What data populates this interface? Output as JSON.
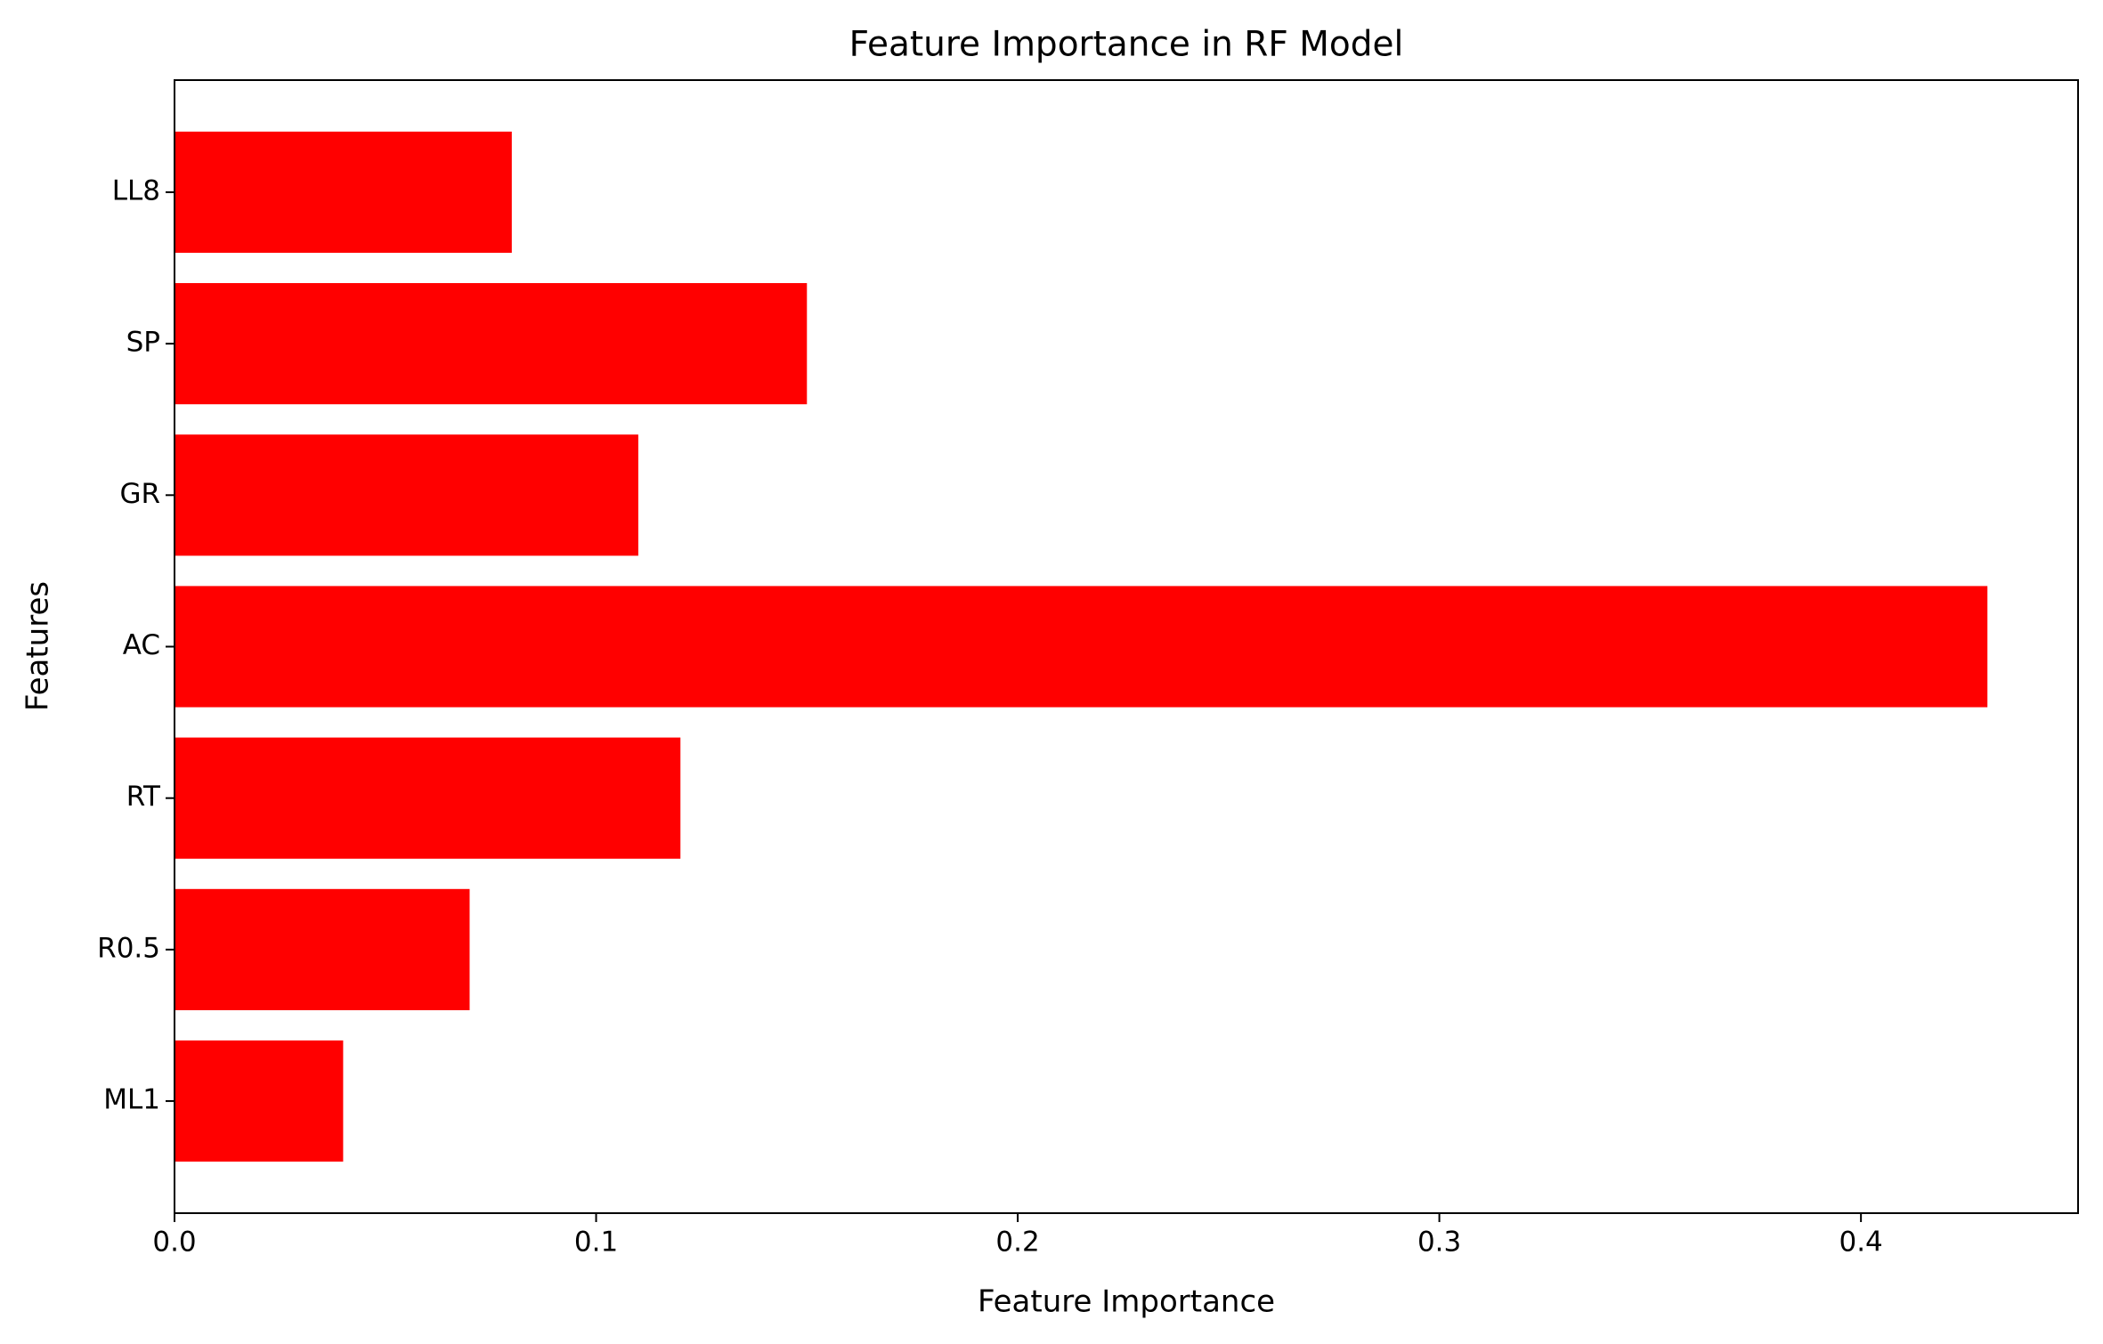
{
  "chart_data": {
    "type": "barh",
    "title": "Feature Importance in RF Model",
    "x_label": "Feature Importance",
    "y_label": "Features",
    "categories": [
      "ML1",
      "R0.5",
      "RT",
      "AC",
      "GR",
      "SP",
      "LL8"
    ],
    "values": [
      0.04,
      0.07,
      0.12,
      0.43,
      0.11,
      0.15,
      0.08
    ],
    "color": "#ff0000",
    "xlim": [
      0,
      0.4515
    ],
    "xticks": [
      {
        "value": 0,
        "label": "0.0"
      },
      0.1,
      0.2,
      0.3,
      0.4
    ],
    "grid": false
  }
}
